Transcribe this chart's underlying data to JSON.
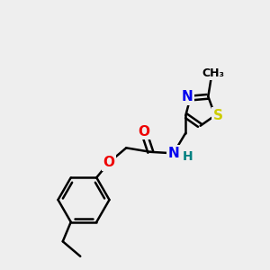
{
  "bg_color": "#eeeeee",
  "bond_color": "#000000",
  "bond_width": 1.8,
  "atom_colors": {
    "N": "#0000ee",
    "O": "#ee0000",
    "S": "#cccc00",
    "H": "#008080",
    "C": "#000000"
  },
  "font_size": 10
}
